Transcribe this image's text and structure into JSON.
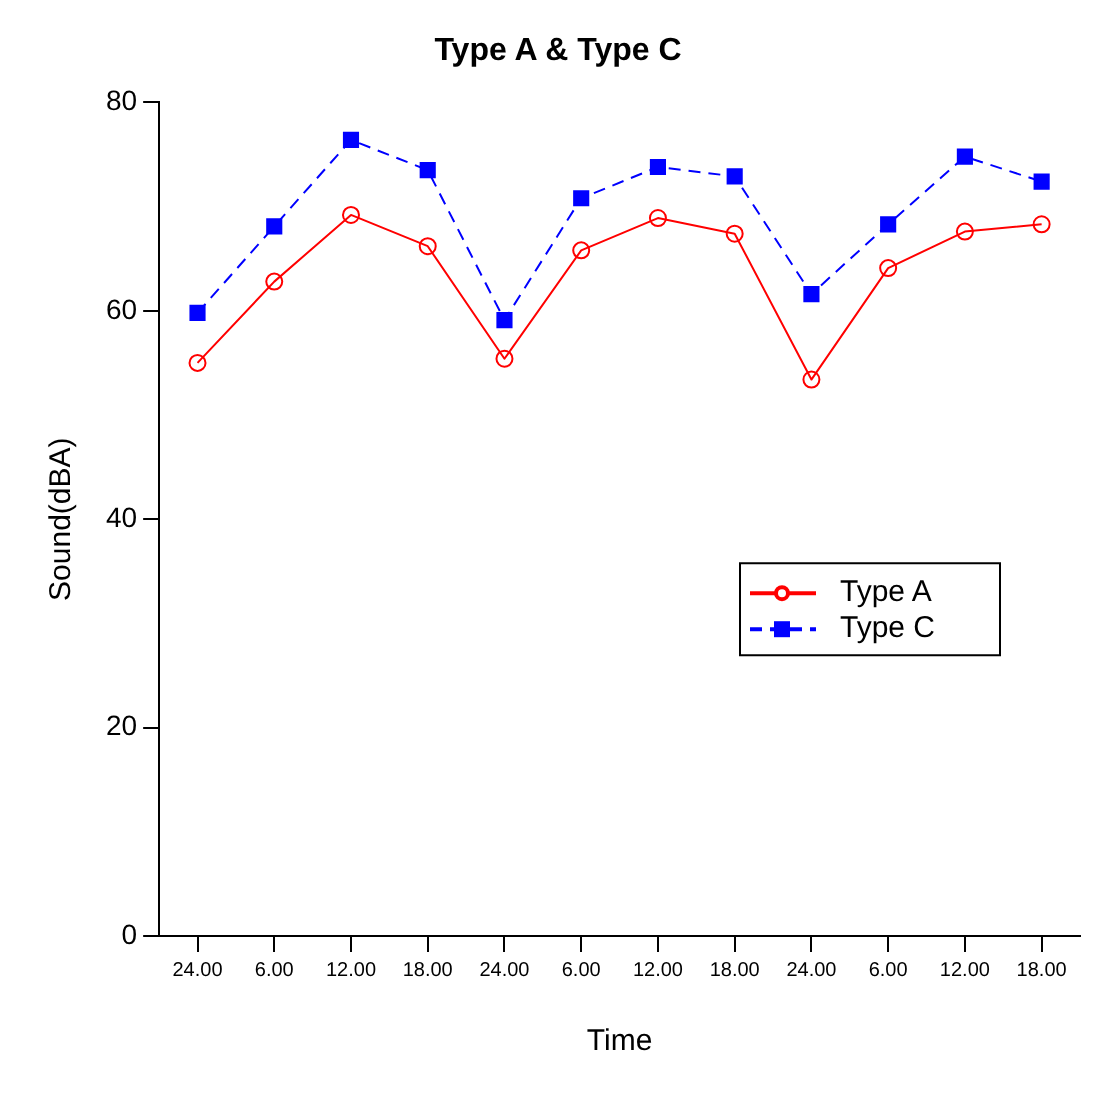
{
  "chart_data": {
    "type": "line",
    "title": "Type A & Type C",
    "xlabel": "Time",
    "ylabel": "Sound(dBA)",
    "categories": [
      "24.00",
      "6.00",
      "12.00",
      "18.00",
      "24.00",
      "6.00",
      "12.00",
      "18.00",
      "24.00",
      "6.00",
      "12.00",
      "18.00"
    ],
    "series": [
      {
        "name": "Type A",
        "color": "#ff0000",
        "marker": "circle",
        "line_style": "solid",
        "values": [
          55.0,
          62.8,
          69.2,
          66.2,
          55.4,
          65.8,
          68.9,
          67.4,
          53.4,
          64.1,
          67.6,
          68.3
        ]
      },
      {
        "name": "Type C",
        "color": "#0000ff",
        "marker": "square",
        "line_style": "dashed",
        "values": [
          59.8,
          68.1,
          76.4,
          73.5,
          59.1,
          70.8,
          73.8,
          72.9,
          61.6,
          68.3,
          74.8,
          72.4
        ]
      }
    ],
    "ylim": [
      0,
      80
    ],
    "yticks": [
      0,
      20,
      40,
      60,
      80
    ],
    "grid": false,
    "legend": "right"
  }
}
